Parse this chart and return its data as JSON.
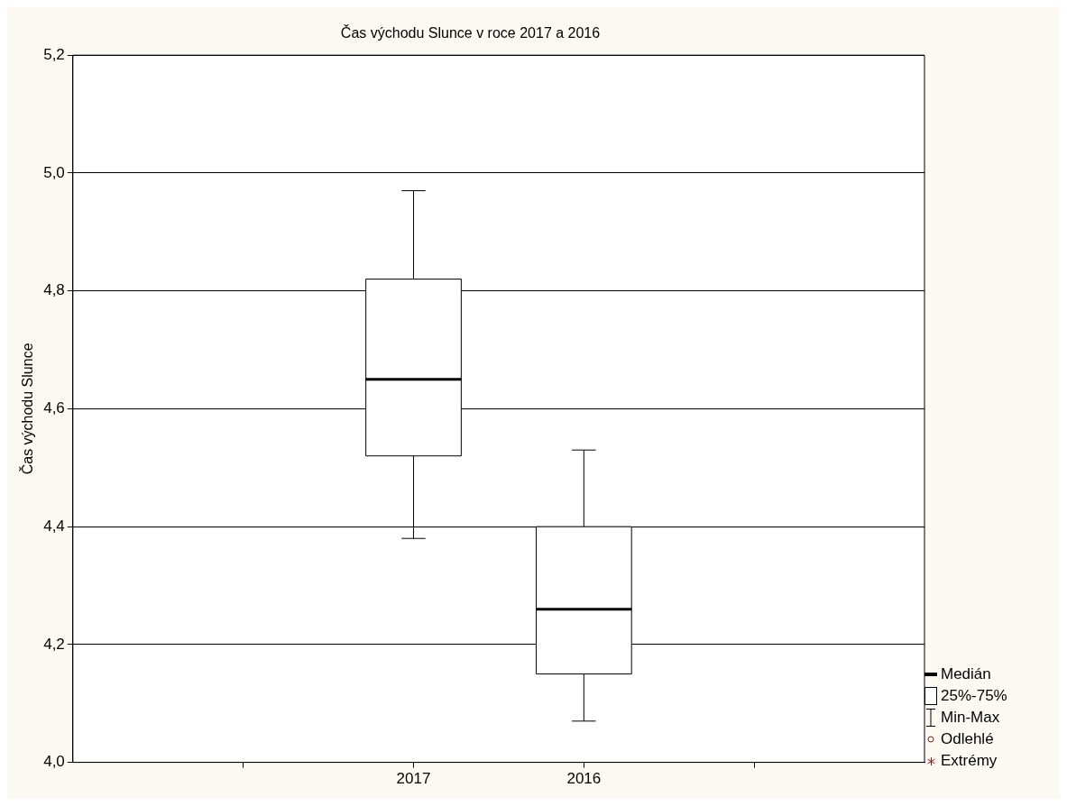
{
  "chart_data": {
    "type": "box",
    "title": "Čas východu Slunce v roce 2017 a 2016",
    "ylabel": "Čas východu Slunce",
    "categories": [
      "2017",
      "2016"
    ],
    "boxes": [
      {
        "low": 4.38,
        "q1": 4.52,
        "median": 4.65,
        "q3": 4.82,
        "high": 4.97
      },
      {
        "low": 4.07,
        "q1": 4.15,
        "median": 4.26,
        "q3": 4.4,
        "high": 4.53
      }
    ],
    "ylim": [
      4.0,
      5.2
    ],
    "yticks": [
      {
        "value": 4.0,
        "label": "4,0"
      },
      {
        "value": 4.2,
        "label": "4,2"
      },
      {
        "value": 4.4,
        "label": "4,4"
      },
      {
        "value": 4.6,
        "label": "4,6"
      },
      {
        "value": 4.8,
        "label": "4,8"
      },
      {
        "value": 5.0,
        "label": "5,0"
      },
      {
        "value": 5.2,
        "label": "5,2"
      }
    ],
    "grid": "y",
    "legend": false,
    "annotations": [
      "Medián",
      "25%-75%",
      "Min-Max",
      "Odlehlé",
      "Extrémy"
    ]
  }
}
